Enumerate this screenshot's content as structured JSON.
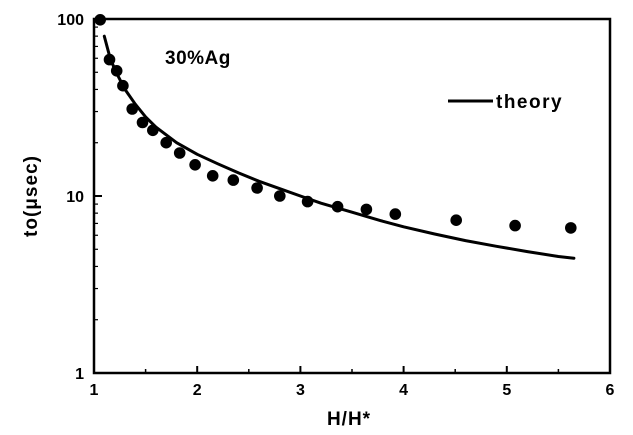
{
  "chart_data": {
    "type": "scatter",
    "title": "",
    "xlabel": "H/H*",
    "ylabel": "to(μsec)",
    "xlim": [
      1,
      6
    ],
    "ylim": [
      1,
      100
    ],
    "yscale": "log",
    "grid": false,
    "x_ticks": [
      "1",
      "2",
      "3",
      "4",
      "5",
      "6"
    ],
    "y_ticks": [
      "1",
      "10",
      "100"
    ],
    "annotation": "30%Ag",
    "legend": {
      "placement": "top-right",
      "entries": [
        "theory"
      ]
    },
    "series": [
      {
        "kind": "points",
        "points": [
          [
            1.06,
            99
          ],
          [
            1.15,
            59
          ],
          [
            1.22,
            51
          ],
          [
            1.28,
            42
          ],
          [
            1.37,
            31
          ],
          [
            1.47,
            26
          ],
          [
            1.57,
            23.5
          ],
          [
            1.7,
            20
          ],
          [
            1.83,
            17.5
          ],
          [
            1.98,
            15
          ],
          [
            2.15,
            13
          ],
          [
            2.35,
            12.3
          ],
          [
            2.58,
            11.1
          ],
          [
            2.8,
            10
          ],
          [
            3.07,
            9.3
          ],
          [
            3.36,
            8.7
          ],
          [
            3.64,
            8.4
          ],
          [
            3.92,
            7.9
          ],
          [
            4.51,
            7.3
          ],
          [
            5.08,
            6.8
          ],
          [
            5.62,
            6.6
          ]
        ]
      },
      {
        "name": "theory",
        "kind": "line",
        "points": [
          [
            1.1,
            80
          ],
          [
            1.15,
            62
          ],
          [
            1.2,
            52
          ],
          [
            1.3,
            40
          ],
          [
            1.4,
            33
          ],
          [
            1.5,
            28
          ],
          [
            1.6,
            24.5
          ],
          [
            1.8,
            20
          ],
          [
            2.0,
            17.2
          ],
          [
            2.2,
            15.2
          ],
          [
            2.4,
            13.5
          ],
          [
            2.6,
            12.1
          ],
          [
            2.8,
            11
          ],
          [
            3.0,
            10
          ],
          [
            3.2,
            9.1
          ],
          [
            3.5,
            8.1
          ],
          [
            3.8,
            7.2
          ],
          [
            4.0,
            6.7
          ],
          [
            4.3,
            6.1
          ],
          [
            4.6,
            5.6
          ],
          [
            4.9,
            5.2
          ],
          [
            5.2,
            4.85
          ],
          [
            5.5,
            4.55
          ],
          [
            5.65,
            4.45
          ]
        ]
      }
    ]
  }
}
